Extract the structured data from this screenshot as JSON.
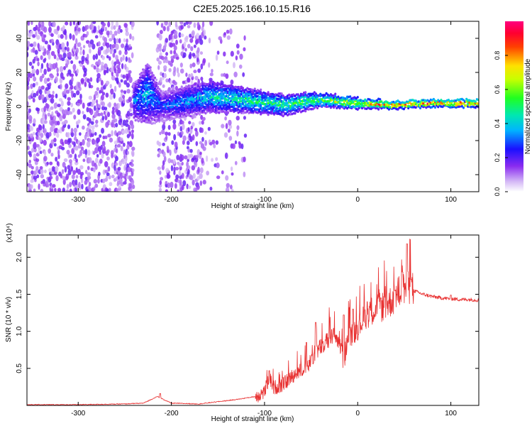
{
  "title": "C2E5.2025.166.10.15.R16",
  "chart_data": [
    {
      "type": "heatmap",
      "xlabel": "Height of straight line (km)",
      "ylabel": "Frequency (Hz)",
      "xlim": [
        -355,
        130
      ],
      "ylim": [
        -50,
        50
      ],
      "xticks": [
        -300,
        -200,
        -100,
        0,
        100
      ],
      "yticks": [
        -40,
        -20,
        0,
        20,
        40
      ],
      "colorbar": {
        "label": "Normalized spectral amplitude",
        "range": [
          0,
          1
        ],
        "ticks": [
          "0.0",
          "0.2",
          "0.4",
          "0.6",
          "0.8"
        ],
        "colormap": "white-purple-blue-cyan-green-yellow-red-magenta"
      },
      "signal_track": {
        "x": [
          -240,
          -225,
          -210,
          -160,
          -120,
          -80,
          -40,
          0,
          40,
          80,
          130
        ],
        "center_hz": [
          3,
          8,
          0,
          6,
          4,
          1,
          4,
          2,
          1,
          2,
          2
        ],
        "half_width_hz": [
          10,
          18,
          8,
          9,
          7,
          6,
          4,
          3,
          2,
          2,
          2
        ],
        "peak_amplitude": [
          0.35,
          0.4,
          0.3,
          0.45,
          0.5,
          0.55,
          0.6,
          0.75,
          0.9,
          0.95,
          0.95
        ]
      },
      "noise_regions": [
        {
          "from": -355,
          "to": -240,
          "density": 0.9
        },
        {
          "from": -215,
          "to": -165,
          "density": 0.8
        },
        {
          "from": -165,
          "to": -120,
          "density": 0.25
        }
      ]
    },
    {
      "type": "line",
      "xlabel": "Height of straight line (km)",
      "ylabel": "SNR (10 * v/v)",
      "y_multiplier": "(x10⁴)",
      "xlim": [
        -355,
        130
      ],
      "ylim": [
        0,
        2.3
      ],
      "xticks": [
        -300,
        -200,
        -100,
        0,
        100
      ],
      "yticks": [
        "0.5",
        "1.0",
        "1.5",
        "2.0"
      ],
      "color": "#e83030",
      "series": [
        {
          "x": [
            -355,
            -300,
            -250,
            -230,
            -215,
            -205,
            -200,
            -170,
            -150,
            -130,
            -110,
            -100,
            -95,
            -90,
            -80,
            -70,
            -60,
            -50,
            -45,
            -40,
            -35,
            -30,
            -25,
            -20,
            -15,
            -10,
            -5,
            0,
            5,
            10,
            15,
            20,
            25,
            30,
            35,
            40,
            45,
            50,
            55,
            60,
            70,
            80,
            90,
            100,
            110,
            120,
            130
          ],
          "y": [
            0.01,
            0.01,
            0.02,
            0.03,
            0.12,
            0.06,
            0.03,
            0.02,
            0.05,
            0.08,
            0.12,
            0.18,
            0.38,
            0.24,
            0.28,
            0.4,
            0.48,
            0.58,
            0.72,
            0.78,
            0.82,
            0.9,
            0.92,
            0.88,
            0.6,
            0.95,
            0.98,
            1.05,
            1.15,
            1.22,
            1.28,
            1.3,
            1.32,
            1.35,
            1.4,
            1.45,
            1.55,
            1.58,
            1.6,
            1.55,
            1.5,
            1.47,
            1.45,
            1.44,
            1.43,
            1.43,
            1.42
          ],
          "peaks": [
            [
              -212,
              0.16
            ],
            [
              -95,
              0.47
            ],
            [
              -55,
              0.85
            ],
            [
              -45,
              1.12
            ],
            [
              -30,
              1.32
            ],
            [
              -15,
              1.22
            ],
            [
              -5,
              1.3
            ],
            [
              10,
              1.4
            ],
            [
              25,
              1.45
            ],
            [
              40,
              1.55
            ],
            [
              48,
              1.8
            ],
            [
              53,
              2.18
            ],
            [
              57,
              1.7
            ],
            [
              100,
              1.49
            ]
          ]
        }
      ]
    }
  ]
}
